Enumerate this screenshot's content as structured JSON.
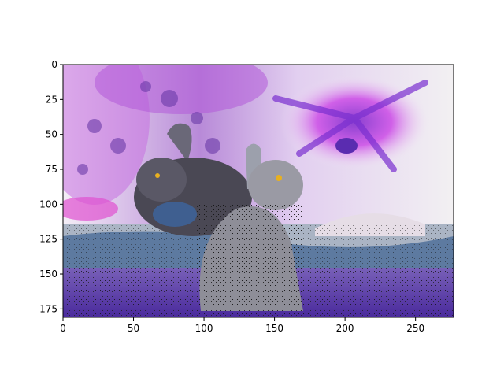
{
  "chart_data": {
    "type": "image",
    "title": "",
    "xlabel": "",
    "ylabel": "",
    "xlim": [
      0,
      277
    ],
    "ylim": [
      181,
      0
    ],
    "y_inverted": true,
    "grid": false,
    "x_ticks": [
      0,
      50,
      100,
      150,
      200,
      250
    ],
    "y_ticks": [
      0,
      25,
      50,
      75,
      100,
      125,
      150,
      175
    ],
    "image_content": {
      "palette": {
        "sky_magenta": "#c04bd8",
        "sky_violet": "#7a3ed0",
        "sky_white": "#f2eef2",
        "rabbit_gray": "#8e8e96",
        "rabbit_dark": "#3f3d45",
        "water_blue": "#4f6f98",
        "ground_purple": "#5a30b8",
        "eye_glow": "#e8b020"
      }
    }
  }
}
